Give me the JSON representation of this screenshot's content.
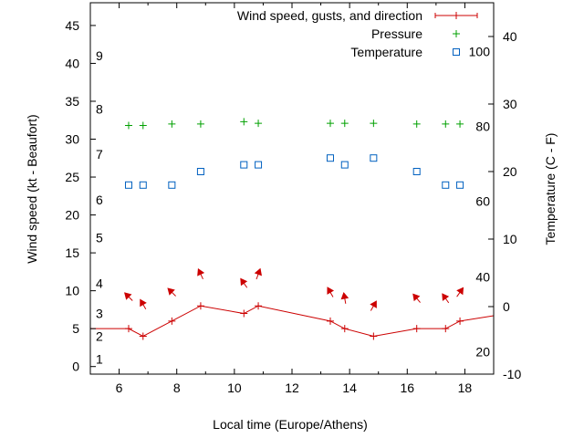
{
  "chart_data": {
    "type": "line",
    "xlabel": "Local time (Europe/Athens)",
    "ylabel": "Wind speed (kt - Beaufort)",
    "y2label": "Temperature (C - F)",
    "xlim": [
      5,
      19
    ],
    "ylim": [
      -1,
      48
    ],
    "y2lim": [
      -10,
      45
    ],
    "x_ticks": [
      6,
      8,
      10,
      12,
      14,
      16,
      18
    ],
    "y_ticks": [
      0,
      5,
      10,
      15,
      20,
      25,
      30,
      35,
      40,
      45
    ],
    "y2_ticks": [
      -10,
      0,
      10,
      20,
      30,
      40
    ],
    "beaufort_labels": [
      {
        "label": "1",
        "kt": 1
      },
      {
        "label": "2",
        "kt": 4
      },
      {
        "label": "3",
        "kt": 7
      },
      {
        "label": "4",
        "kt": 11
      },
      {
        "label": "5",
        "kt": 17
      },
      {
        "label": "6",
        "kt": 22
      },
      {
        "label": "7",
        "kt": 28
      },
      {
        "label": "8",
        "kt": 34
      },
      {
        "label": "9",
        "kt": 41
      }
    ],
    "fahrenheit_labels": [
      {
        "label": "20",
        "c": -6.7
      },
      {
        "label": "40",
        "c": 4.4
      },
      {
        "label": "60",
        "c": 15.6
      },
      {
        "label": "80",
        "c": 26.7
      },
      {
        "label": "100",
        "c": 37.8
      }
    ],
    "legend": {
      "placement": "top-right",
      "entries": [
        "Wind speed, gusts, and direction",
        "Pressure",
        "Temperature"
      ]
    },
    "series": [
      {
        "name": "Wind speed, gusts, and direction",
        "color": "#cc0000",
        "x": [
          4.5,
          6.33,
          6.83,
          7.83,
          8.83,
          10.33,
          10.83,
          13.33,
          13.83,
          14.83,
          16.33,
          17.33,
          17.83,
          19.5
        ],
        "y": [
          5,
          5,
          4,
          6,
          8,
          7,
          8,
          6,
          5,
          4,
          5,
          5,
          6,
          7
        ]
      },
      {
        "name": "Wind direction arrows",
        "color": "#cc0000",
        "x": [
          6.33,
          6.83,
          7.83,
          8.83,
          10.33,
          10.83,
          13.33,
          13.83,
          14.83,
          16.33,
          17.33,
          17.83
        ],
        "y": [
          9.2,
          8.2,
          9.8,
          12.2,
          11.0,
          12.2,
          9.8,
          9.0,
          8.0,
          9.0,
          9.0,
          9.8
        ],
        "angle_deg": [
          135,
          120,
          135,
          115,
          125,
          70,
          120,
          100,
          60,
          130,
          125,
          55
        ]
      },
      {
        "name": "Pressure",
        "color": "#00a000",
        "x": [
          6.33,
          6.83,
          7.83,
          8.83,
          10.33,
          10.83,
          13.33,
          13.83,
          14.83,
          16.33,
          17.33,
          17.83
        ],
        "y": [
          31.8,
          31.8,
          32.0,
          32.0,
          32.3,
          32.1,
          32.1,
          32.1,
          32.1,
          32.0,
          32.0,
          32.0
        ]
      },
      {
        "name": "Temperature",
        "color": "#0060c0",
        "x": [
          6.33,
          6.83,
          7.83,
          8.83,
          10.33,
          10.83,
          13.33,
          13.83,
          14.83,
          16.33,
          17.33,
          17.83
        ],
        "y": [
          18,
          18,
          18,
          20,
          21,
          21,
          22,
          21,
          22,
          20,
          18,
          18
        ]
      }
    ]
  }
}
